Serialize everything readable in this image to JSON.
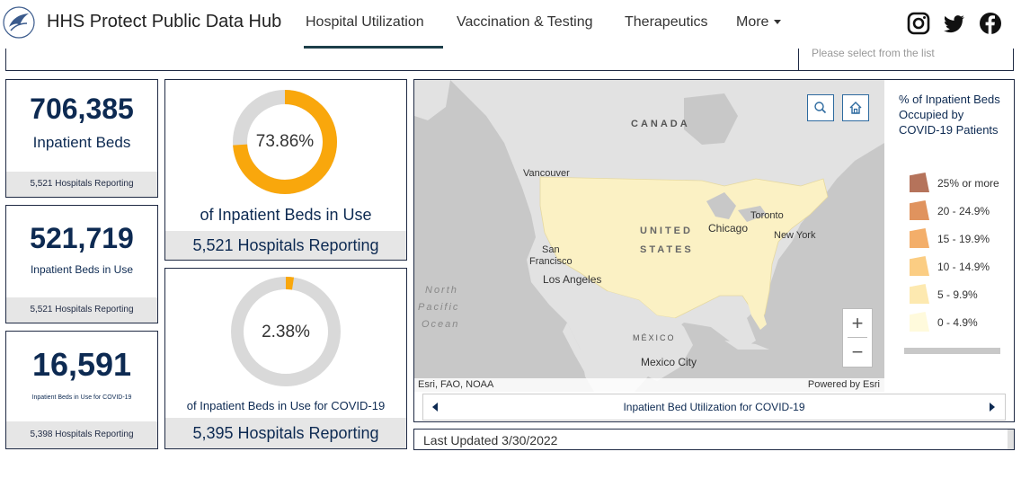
{
  "header": {
    "title": "HHS Protect Public Data Hub",
    "nav": [
      {
        "label": "Hospital Utilization"
      },
      {
        "label": "Vaccination & Testing"
      },
      {
        "label": "Therapeutics"
      },
      {
        "label": "More"
      }
    ],
    "social_icons": [
      "instagram-icon",
      "twitter-icon",
      "facebook-icon"
    ]
  },
  "filter": {
    "placeholder": "Please select from the list"
  },
  "stats": [
    {
      "value": "706,385",
      "label": "Inpatient Beds",
      "footer": "5,521 Hospitals Reporting"
    },
    {
      "value": "521,719",
      "label": "Inpatient Beds in Use",
      "footer": "5,521 Hospitals Reporting"
    },
    {
      "value": "16,591",
      "label": "Inpatient Beds in Use for COVID-19",
      "footer": "5,398 Hospitals Reporting"
    }
  ],
  "donuts": [
    {
      "percent_text": "73.86%",
      "percent": 73.86,
      "label": "of Inpatient Beds in Use",
      "footer": "5,521 Hospitals Reporting"
    },
    {
      "percent_text": "2.38%",
      "percent": 2.38,
      "label": "of Inpatient Beds in Use for COVID-19",
      "footer": "5,395 Hospitals Reporting"
    }
  ],
  "map": {
    "labels": {
      "canada": "CANADA",
      "united": "UNITED",
      "states": "STATES",
      "mexico": "MÉXICO",
      "vancouver": "Vancouver",
      "san": "San",
      "francisco": "Francisco",
      "los_angeles": "Los Angeles",
      "chicago": "Chicago",
      "toronto": "Toronto",
      "new_york": "New York",
      "mexico_city": "Mexico City",
      "north": "North",
      "pacific": "Pacific",
      "ocean": "Ocean"
    },
    "attribution_left": "Esri, FAO, NOAA",
    "attribution_right": "Powered by Esri",
    "zoom_in": "+",
    "zoom_out": "−",
    "legend": {
      "title": "% of Inpatient Beds Occupied by COVID-19 Patients",
      "items": [
        {
          "label": "25% or more",
          "color": "#b5735b"
        },
        {
          "label": "20 - 24.9%",
          "color": "#e0935e"
        },
        {
          "label": "15 - 19.9%",
          "color": "#f3ae6a"
        },
        {
          "label": "10 - 14.9%",
          "color": "#fbcd83"
        },
        {
          "label": "5 - 9.9%",
          "color": "#fde9b0"
        },
        {
          "label": "0 - 4.9%",
          "color": "#fffadc"
        }
      ]
    },
    "carousel_label": "Inpatient Bed Utilization for COVID-19"
  },
  "last_updated": "Last Updated 3/30/2022",
  "colors": {
    "accent": "#f9a70c",
    "donut_track": "#d9d9d9",
    "navy": "#0d2a52"
  }
}
